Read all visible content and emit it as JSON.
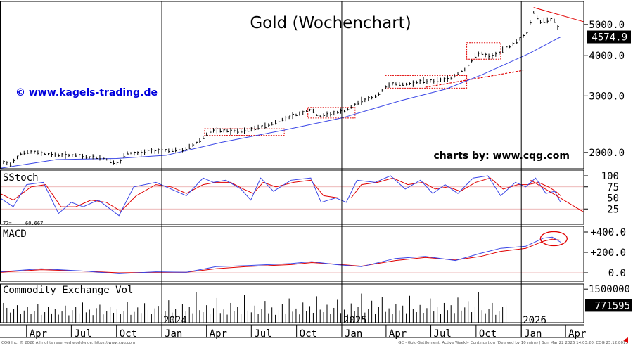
{
  "chart_data": [
    {
      "type": "candlestick",
      "title": "Gold (Wochenchart)",
      "watermark": "© www.kagels-trading.de",
      "credit": "charts by: www.cqg.com",
      "y_ticks": [
        2000,
        3000,
        4000,
        5000
      ],
      "y_tick_labels": [
        "2000.0",
        "3000.0",
        "4000.0",
        "5000.0"
      ],
      "y_scale": "log",
      "ylim": [
        1780,
        5900
      ],
      "last_price_label": "4574.9",
      "last_price": 4574.9,
      "annotation_color": "#e00000",
      "price_color": "#000000",
      "ma_color": "#3a46e6",
      "price_path": [
        [
          "2023-02-06",
          1870
        ],
        [
          "2023-02-27",
          1840
        ],
        [
          "2023-03-20",
          1985
        ],
        [
          "2023-04-10",
          2005
        ],
        [
          "2023-05-01",
          1990
        ],
        [
          "2023-06-01",
          1965
        ],
        [
          "2023-07-01",
          1960
        ],
        [
          "2023-08-01",
          1935
        ],
        [
          "2023-09-01",
          1925
        ],
        [
          "2023-10-06",
          1840
        ],
        [
          "2023-10-20",
          1990
        ],
        [
          "2023-11-15",
          1985
        ],
        [
          "2023-12-10",
          2020
        ],
        [
          "2024-01-10",
          2030
        ],
        [
          "2024-02-15",
          2030
        ],
        [
          "2024-03-15",
          2160
        ],
        [
          "2024-04-10",
          2340
        ],
        [
          "2024-05-10",
          2335
        ],
        [
          "2024-06-10",
          2320
        ],
        [
          "2024-07-10",
          2380
        ],
        [
          "2024-08-10",
          2450
        ],
        [
          "2024-09-10",
          2560
        ],
        [
          "2024-10-10",
          2650
        ],
        [
          "2024-10-30",
          2720
        ],
        [
          "2024-11-15",
          2580
        ],
        [
          "2024-12-10",
          2640
        ],
        [
          "2025-01-10",
          2700
        ],
        [
          "2025-02-10",
          2900
        ],
        [
          "2025-03-10",
          2980
        ],
        [
          "2025-04-10",
          3280
        ],
        [
          "2025-05-10",
          3250
        ],
        [
          "2025-06-10",
          3330
        ],
        [
          "2025-07-10",
          3340
        ],
        [
          "2025-08-10",
          3400
        ],
        [
          "2025-09-10",
          3650
        ],
        [
          "2025-10-08",
          4100
        ],
        [
          "2025-10-28",
          3950
        ],
        [
          "2025-11-20",
          4100
        ],
        [
          "2025-12-20",
          4400
        ],
        [
          "2026-01-12",
          4700
        ],
        [
          "2026-01-26",
          5450
        ],
        [
          "2026-02-10",
          5050
        ],
        [
          "2026-02-24",
          5200
        ],
        [
          "2026-03-06",
          5200
        ],
        [
          "2026-03-16",
          4900
        ],
        [
          "2026-03-22",
          4574.9
        ]
      ],
      "ma_path": [
        [
          "2023-02-06",
          1785
        ],
        [
          "2023-06-01",
          1900
        ],
        [
          "2023-10-01",
          1915
        ],
        [
          "2024-01-10",
          1960
        ],
        [
          "2024-05-01",
          2150
        ],
        [
          "2024-09-01",
          2340
        ],
        [
          "2025-01-01",
          2560
        ],
        [
          "2025-05-01",
          2900
        ],
        [
          "2025-08-01",
          3150
        ],
        [
          "2025-10-15",
          3500
        ],
        [
          "2026-01-15",
          4050
        ],
        [
          "2026-03-22",
          4574.9
        ]
      ],
      "panels": [
        {
          "name": "SStoch",
          "ticks": [
            100,
            75,
            50,
            25
          ],
          "tick_labels": [
            "100",
            "75",
            "50",
            "25"
          ],
          "readout": "60.667",
          "readout_prefix": "77=",
          "k_path": [
            [
              "2023-02-06",
              50
            ],
            [
              "2023-03-05",
              30
            ],
            [
              "2023-04-01",
              80
            ],
            [
              "2023-05-05",
              85
            ],
            [
              "2023-06-05",
              15
            ],
            [
              "2023-07-01",
              40
            ],
            [
              "2023-07-25",
              30
            ],
            [
              "2023-08-25",
              45
            ],
            [
              "2023-10-06",
              10
            ],
            [
              "2023-11-05",
              75
            ],
            [
              "2023-12-20",
              85
            ],
            [
              "2024-01-20",
              70
            ],
            [
              "2024-02-20",
              55
            ],
            [
              "2024-03-25",
              95
            ],
            [
              "2024-04-15",
              85
            ],
            [
              "2024-05-10",
              90
            ],
            [
              "2024-06-10",
              70
            ],
            [
              "2024-06-30",
              45
            ],
            [
              "2024-07-20",
              95
            ],
            [
              "2024-08-15",
              65
            ],
            [
              "2024-09-20",
              90
            ],
            [
              "2024-10-30",
              95
            ],
            [
              "2024-11-20",
              40
            ],
            [
              "2024-12-20",
              50
            ],
            [
              "2025-01-10",
              40
            ],
            [
              "2025-02-01",
              90
            ],
            [
              "2025-03-10",
              85
            ],
            [
              "2025-04-10",
              100
            ],
            [
              "2025-05-10",
              70
            ],
            [
              "2025-06-10",
              90
            ],
            [
              "2025-07-05",
              60
            ],
            [
              "2025-07-30",
              80
            ],
            [
              "2025-08-25",
              60
            ],
            [
              "2025-09-25",
              95
            ],
            [
              "2025-10-25",
              100
            ],
            [
              "2025-11-20",
              55
            ],
            [
              "2025-12-20",
              85
            ],
            [
              "2026-01-10",
              75
            ],
            [
              "2026-01-30",
              95
            ],
            [
              "2026-02-20",
              60
            ],
            [
              "2026-03-10",
              65
            ],
            [
              "2026-03-22",
              40
            ]
          ],
          "d_path": [
            [
              "2023-02-06",
              60
            ],
            [
              "2023-03-05",
              45
            ],
            [
              "2023-04-10",
              75
            ],
            [
              "2023-05-10",
              80
            ],
            [
              "2023-06-10",
              30
            ],
            [
              "2023-07-10",
              30
            ],
            [
              "2023-08-10",
              45
            ],
            [
              "2023-09-10",
              40
            ],
            [
              "2023-10-10",
              20
            ],
            [
              "2023-11-10",
              55
            ],
            [
              "2023-12-20",
              80
            ],
            [
              "2024-01-20",
              75
            ],
            [
              "2024-02-20",
              60
            ],
            [
              "2024-03-25",
              80
            ],
            [
              "2024-04-20",
              85
            ],
            [
              "2024-05-20",
              85
            ],
            [
              "2024-06-15",
              70
            ],
            [
              "2024-07-05",
              60
            ],
            [
              "2024-07-25",
              85
            ],
            [
              "2024-08-20",
              75
            ],
            [
              "2024-09-25",
              85
            ],
            [
              "2024-10-30",
              90
            ],
            [
              "2024-11-25",
              55
            ],
            [
              "2024-12-25",
              50
            ],
            [
              "2025-01-20",
              50
            ],
            [
              "2025-02-10",
              80
            ],
            [
              "2025-03-15",
              85
            ],
            [
              "2025-04-15",
              95
            ],
            [
              "2025-05-15",
              80
            ],
            [
              "2025-06-15",
              85
            ],
            [
              "2025-07-10",
              70
            ],
            [
              "2025-08-05",
              75
            ],
            [
              "2025-08-30",
              65
            ],
            [
              "2025-09-30",
              85
            ],
            [
              "2025-10-30",
              95
            ],
            [
              "2025-11-25",
              70
            ],
            [
              "2025-12-25",
              80
            ],
            [
              "2026-01-15",
              80
            ],
            [
              "2026-02-05",
              85
            ],
            [
              "2026-02-25",
              75
            ],
            [
              "2026-03-12",
              65
            ],
            [
              "2026-03-22",
              55
            ]
          ]
        },
        {
          "name": "MACD",
          "ticks": [
            400,
            200,
            0
          ],
          "tick_labels": [
            "+400.0",
            "+200.0",
            "0.0"
          ],
          "macd_path": [
            [
              "2023-02-06",
              10
            ],
            [
              "2023-05-01",
              40
            ],
            [
              "2023-08-01",
              15
            ],
            [
              "2023-10-06",
              -10
            ],
            [
              "2023-12-20",
              10
            ],
            [
              "2024-02-20",
              5
            ],
            [
              "2024-04-20",
              60
            ],
            [
              "2024-06-20",
              70
            ],
            [
              "2024-09-20",
              90
            ],
            [
              "2024-11-01",
              110
            ],
            [
              "2024-12-20",
              80
            ],
            [
              "2025-02-10",
              60
            ],
            [
              "2025-04-20",
              140
            ],
            [
              "2025-06-20",
              160
            ],
            [
              "2025-08-20",
              120
            ],
            [
              "2025-10-10",
              190
            ],
            [
              "2025-11-20",
              240
            ],
            [
              "2026-01-10",
              260
            ],
            [
              "2026-02-15",
              340
            ],
            [
              "2026-03-05",
              350
            ],
            [
              "2026-03-22",
              300
            ]
          ],
          "signal_path": [
            [
              "2023-02-06",
              5
            ],
            [
              "2023-05-01",
              30
            ],
            [
              "2023-08-01",
              15
            ],
            [
              "2023-10-06",
              0
            ],
            [
              "2023-12-20",
              5
            ],
            [
              "2024-02-20",
              5
            ],
            [
              "2024-04-20",
              40
            ],
            [
              "2024-06-20",
              60
            ],
            [
              "2024-09-20",
              80
            ],
            [
              "2024-11-01",
              100
            ],
            [
              "2024-12-20",
              85
            ],
            [
              "2025-02-10",
              65
            ],
            [
              "2025-04-20",
              120
            ],
            [
              "2025-06-20",
              150
            ],
            [
              "2025-08-20",
              125
            ],
            [
              "2025-10-10",
              160
            ],
            [
              "2025-11-20",
              210
            ],
            [
              "2026-01-10",
              240
            ],
            [
              "2026-02-15",
              310
            ],
            [
              "2026-03-05",
              330
            ],
            [
              "2026-03-22",
              320
            ]
          ]
        },
        {
          "name": "Commodity Exchange Vol",
          "ticks": [
            1500000
          ],
          "tick_labels": [
            "1500000"
          ],
          "last_label": "771595",
          "last_value": 771595
        }
      ],
      "volume": [
        320000,
        880000,
        660000,
        450000,
        610000,
        780000,
        400000,
        540000,
        700000,
        380000,
        520000,
        830000,
        350000,
        470000,
        720000,
        410000,
        600000,
        360000,
        500000,
        760000,
        330000,
        560000,
        690000,
        420000,
        900000,
        460000,
        580000,
        340000,
        650000,
        800000,
        370000,
        530000,
        710000,
        440000,
        620000,
        390000,
        510000,
        940000,
        350000,
        480000,
        680000,
        430000,
        870000,
        560000,
        400000,
        640000,
        750000,
        380000,
        520000,
        1000000,
        450000,
        610000,
        370000,
        820000,
        500000,
        700000,
        420000,
        1350000,
        560000,
        470000,
        780000,
        390000,
        650000,
        1100000,
        430000,
        590000,
        360000,
        880000,
        520000,
        690000,
        400000,
        1250000,
        540000,
        460000,
        760000,
        380000,
        610000,
        970000,
        420000,
        680000,
        350000,
        560000,
        840000,
        410000,
        1080000,
        490000,
        630000,
        370000,
        900000,
        520000,
        740000,
        440000,
        1180000,
        580000,
        470000,
        800000,
        390000,
        660000,
        1020000,
        430000,
        580000,
        360000,
        860000,
        510000,
        720000,
        1300000,
        450000,
        620000,
        980000,
        400000,
        700000,
        1150000,
        480000,
        640000,
        380000,
        830000,
        550000,
        760000,
        420000,
        1200000,
        600000,
        470000,
        790000,
        440000,
        650000,
        1080000,
        500000,
        710000,
        390000,
        880000,
        560000,
        780000,
        430000,
        1120000,
        540000,
        680000,
        960000,
        470000,
        720000,
        1380000,
        560000,
        420000,
        600000,
        880000,
        350000,
        500000,
        700000,
        771595
      ],
      "volume_start": "2023-02-06",
      "volume_step_days": 7,
      "x_axis_months": [
        "Apr",
        "Jul",
        "Oct",
        "Jan",
        "Apr",
        "Jul",
        "Oct",
        "Jan",
        "Apr",
        "Jul",
        "Oct",
        "Jan",
        "Apr"
      ],
      "x_axis_years": [
        "2024",
        "2025",
        "2026"
      ],
      "footer_left": "CQG Inc. © 2026 All rights reserved worldwide. https://www.cqg.com",
      "footer_right": "GC - Gold-Settlement, Active Weekly Continuation (Delayed by 10 mins) | Sun Mar 22 2026 14:03:20, CQG 25.12.8015"
    }
  ]
}
